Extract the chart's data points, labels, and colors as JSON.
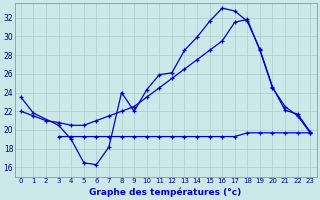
{
  "title": "Graphe des températures (°c)",
  "bg_color": "#cce8e8",
  "grid_color": "#aacccc",
  "line_color": "#0000cc",
  "xlim": [
    -0.5,
    23.5
  ],
  "ylim": [
    15.0,
    33.5
  ],
  "xticks": [
    0,
    1,
    2,
    3,
    4,
    5,
    6,
    7,
    8,
    9,
    10,
    11,
    12,
    13,
    14,
    15,
    16,
    17,
    18,
    19,
    20,
    21,
    22,
    23
  ],
  "yticks": [
    16,
    18,
    20,
    22,
    24,
    26,
    28,
    30,
    32
  ],
  "series_jagged_x": [
    0,
    1,
    3,
    4,
    5,
    6,
    7,
    8,
    9,
    10,
    11,
    12,
    13,
    14,
    15,
    16,
    17,
    18,
    19,
    20,
    21,
    22,
    23
  ],
  "series_jagged_y": [
    23.5,
    21.8,
    20.5,
    19.0,
    16.5,
    16.3,
    18.2,
    24.0,
    22.0,
    24.3,
    25.9,
    26.1,
    28.5,
    29.9,
    31.6,
    33.0,
    32.7,
    31.6,
    28.6,
    24.6,
    22.1,
    21.7,
    19.8
  ],
  "series_linear_x": [
    0,
    1,
    2,
    3,
    4,
    5,
    6,
    7,
    8,
    9,
    10,
    11,
    12,
    13,
    14,
    15,
    16,
    17,
    18,
    19,
    20,
    21,
    22,
    23
  ],
  "series_linear_y": [
    22.0,
    21.5,
    21.0,
    20.8,
    20.5,
    20.5,
    21.0,
    21.5,
    22.0,
    22.5,
    23.5,
    24.5,
    25.5,
    26.5,
    27.5,
    28.5,
    29.5,
    31.5,
    31.8,
    28.5,
    24.5,
    22.5,
    21.5,
    19.7
  ],
  "series_flat_x": [
    3,
    4,
    5,
    6,
    7,
    8,
    9,
    10,
    11,
    12,
    13,
    14,
    15,
    16,
    17,
    18,
    19,
    20,
    21,
    22,
    23
  ],
  "series_flat_y": [
    19.3,
    19.3,
    19.3,
    19.3,
    19.3,
    19.3,
    19.3,
    19.3,
    19.3,
    19.3,
    19.3,
    19.3,
    19.3,
    19.3,
    19.3,
    19.7,
    19.7,
    19.7,
    19.7,
    19.7,
    19.7
  ]
}
